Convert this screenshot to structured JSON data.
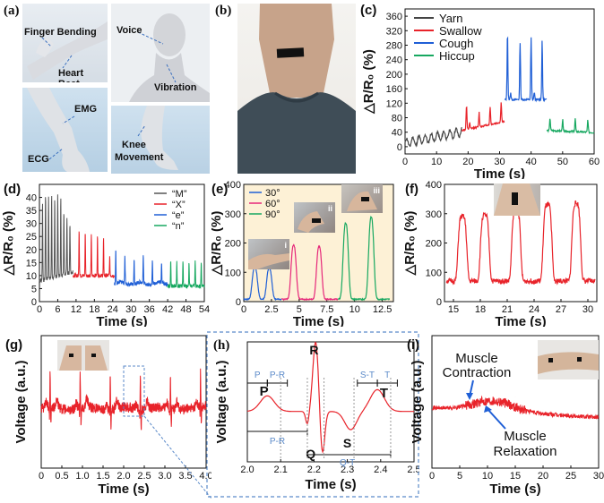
{
  "panels": {
    "a": {
      "label": "(a)",
      "annotations": [
        "Finger Bending",
        "Heart Beat",
        "Voice",
        "Vibration",
        "EMG",
        "ECG",
        "Knee",
        "Movement"
      ]
    },
    "b": {
      "label": "(b)"
    },
    "c": {
      "label": "(c)"
    },
    "d": {
      "label": "(d)"
    },
    "e": {
      "label": "(e)",
      "insets": [
        "i",
        "ii",
        "iii"
      ]
    },
    "f": {
      "label": "(f)"
    },
    "g": {
      "label": "(g)"
    },
    "h": {
      "label": "(h)"
    },
    "i": {
      "label": "(i)",
      "annotations": [
        "Muscle",
        "Contraction",
        "Muscle",
        "Relaxation"
      ]
    }
  },
  "colors": {
    "red": "#e8232a",
    "blue": "#1f5fd6",
    "black": "#444444",
    "green": "#17a860",
    "gray": "#555555",
    "magenta": "#e6287a",
    "ecg_blue": "#5b8ac9",
    "sand": "#fdf1d6"
  },
  "chart_data": [
    {
      "id": "c",
      "type": "line",
      "xlabel": "Time (s)",
      "ylabel": "△R/R₀ (%)",
      "xlim": [
        0,
        60
      ],
      "ylim": [
        -20,
        380
      ],
      "xticks": [
        0,
        10,
        20,
        30,
        40,
        50,
        60
      ],
      "yticks": [
        0,
        40,
        80,
        120,
        160,
        200,
        240,
        280,
        320,
        360
      ],
      "legend_position": "top-left",
      "series": [
        {
          "name": "Yarn",
          "color": "#444444",
          "x": [
            0,
            2,
            4,
            6,
            8,
            10,
            12,
            14,
            16,
            18
          ],
          "values": [
            10,
            30,
            15,
            35,
            20,
            38,
            25,
            42,
            30,
            45
          ]
        },
        {
          "name": "Swallow",
          "color": "#e8232a",
          "x": [
            18.5,
            19.5,
            20.5,
            22.5,
            23.5,
            24.5,
            26,
            27,
            28,
            29.5,
            30.5,
            31.5
          ],
          "values": [
            45,
            115,
            65,
            60,
            95,
            60,
            70,
            110,
            65,
            70,
            125,
            70
          ]
        },
        {
          "name": "Cough",
          "color": "#1f5fd6",
          "x": [
            32,
            32.5,
            33.5,
            35.5,
            36.5,
            37.5,
            39,
            40,
            41,
            42.5,
            43.5,
            44.5
          ],
          "values": [
            70,
            320,
            150,
            140,
            290,
            145,
            140,
            300,
            150,
            145,
            295,
            130
          ]
        },
        {
          "name": "Hiccup",
          "color": "#17a860",
          "x": [
            45,
            46,
            47,
            49,
            50,
            51,
            53,
            54,
            55,
            57,
            58,
            59
          ],
          "values": [
            50,
            80,
            50,
            45,
            75,
            48,
            45,
            78,
            45,
            42,
            75,
            40
          ]
        }
      ]
    },
    {
      "id": "d",
      "type": "line",
      "xlabel": "Time (s)",
      "ylabel": "△R/R₀ (%)",
      "xlim": [
        0,
        54
      ],
      "ylim": [
        0,
        45
      ],
      "xticks": [
        0,
        6,
        12,
        18,
        24,
        30,
        36,
        42,
        48,
        54
      ],
      "yticks": [
        0,
        5,
        10,
        15,
        20,
        25,
        30,
        35,
        40
      ],
      "legend_position": "top-right",
      "series": [
        {
          "name": "“M”",
          "color": "#555555",
          "x": [
            1,
            2,
            3,
            4,
            5,
            6,
            7,
            8,
            9,
            10
          ],
          "values": [
            38,
            41,
            40,
            41,
            39,
            41,
            40,
            35,
            32,
            30
          ]
        },
        {
          "name": "“X”",
          "color": "#e8232a",
          "x": [
            13,
            15,
            17,
            19,
            21,
            23
          ],
          "values": [
            28,
            27,
            26,
            25,
            24,
            17
          ]
        },
        {
          "name": "“e”",
          "color": "#1f5fd6",
          "x": [
            25,
            28,
            31,
            34,
            37,
            40
          ],
          "values": [
            20,
            18,
            16,
            18,
            16,
            15
          ]
        },
        {
          "name": "“n”",
          "color": "#17a860",
          "x": [
            43,
            45,
            47,
            49,
            51,
            53
          ],
          "values": [
            16,
            15,
            16,
            15,
            16,
            15
          ]
        }
      ]
    },
    {
      "id": "e",
      "type": "line",
      "xlabel": "Time (s)",
      "ylabel": "△R/R₀ (%)",
      "xlim": [
        0,
        13.5
      ],
      "ylim": [
        0,
        400
      ],
      "xticks": [
        0.0,
        2.5,
        5.0,
        7.5,
        10.0,
        12.5
      ],
      "yticks": [
        0,
        100,
        200,
        300,
        400
      ],
      "legend_position": "top-left",
      "series": [
        {
          "name": "30°",
          "color": "#1f5fd6",
          "x": [
            1.0,
            2.3
          ],
          "values": [
            110,
            105
          ]
        },
        {
          "name": "60°",
          "color": "#e6287a",
          "x": [
            4.5,
            6.8
          ],
          "values": [
            185,
            180
          ]
        },
        {
          "name": "90°",
          "color": "#17a860",
          "x": [
            9.2,
            11.5
          ],
          "values": [
            260,
            280
          ]
        }
      ]
    },
    {
      "id": "f",
      "type": "line",
      "xlabel": "Time (s)",
      "ylabel": "△R/R₀ (%)",
      "xlim": [
        14,
        31
      ],
      "ylim": [
        0,
        400
      ],
      "xticks": [
        15,
        18,
        21,
        24,
        27,
        30
      ],
      "yticks": [
        0,
        100,
        200,
        300,
        400
      ],
      "series": [
        {
          "name": "",
          "color": "#e8232a",
          "x": [
            16,
            18.5,
            22,
            25.5,
            28.7
          ],
          "values": [
            290,
            295,
            320,
            330,
            335
          ]
        }
      ]
    },
    {
      "id": "g",
      "type": "line",
      "xlabel": "Time (s)",
      "ylabel": "Voltage (a.u.)",
      "xlim": [
        0,
        4.0
      ],
      "xticks": [
        0,
        0.5,
        1.0,
        1.5,
        2.0,
        2.5,
        3.0,
        3.5,
        4.0
      ],
      "xtick_labels": [
        "0",
        "0.5",
        "1.0",
        "1.5",
        "2.0",
        "2.5",
        "3.0",
        "3.5",
        "4.0"
      ],
      "series": [
        {
          "name": "",
          "color": "#e8232a",
          "x": [
            0.25,
            1.0,
            1.7,
            2.2,
            2.9,
            3.6
          ],
          "values": [
            0.9,
            0.9,
            0.9,
            0.9,
            0.9,
            0.9
          ]
        }
      ]
    },
    {
      "id": "h",
      "type": "line",
      "xlabel": "Time (s)",
      "ylabel": "Voltage (a.u.)",
      "xlim": [
        2.0,
        2.5
      ],
      "xticks": [
        2.0,
        2.1,
        2.2,
        2.3,
        2.4,
        2.5
      ],
      "xtick_labels": [
        "2.0",
        "2.1",
        "2.2",
        "2.3",
        "2.4",
        "2.5"
      ],
      "annotations": [
        "P",
        "R",
        "Q",
        "S",
        "T",
        "P",
        "P-R",
        "S-T",
        "T",
        "P-R",
        "Q-T"
      ],
      "series": [
        {
          "name": "",
          "color": "#e8232a",
          "x": [
            2.05,
            2.18,
            2.2,
            2.22,
            2.3,
            2.42
          ],
          "values": [
            0.3,
            0.0,
            1.0,
            -0.6,
            -0.2,
            0.35
          ]
        }
      ]
    },
    {
      "id": "i",
      "type": "line",
      "xlabel": "Time (s)",
      "ylabel": "Voltage (a.u.)",
      "xlim": [
        0,
        30
      ],
      "xticks": [
        0,
        5,
        10,
        15,
        20,
        25,
        30
      ],
      "series": [
        {
          "name": "",
          "color": "#e8232a",
          "x": [
            0,
            5,
            10,
            15,
            20,
            25,
            30
          ],
          "values": [
            0.5,
            0.52,
            0.62,
            0.6,
            0.48,
            0.45,
            0.4
          ]
        }
      ]
    }
  ]
}
